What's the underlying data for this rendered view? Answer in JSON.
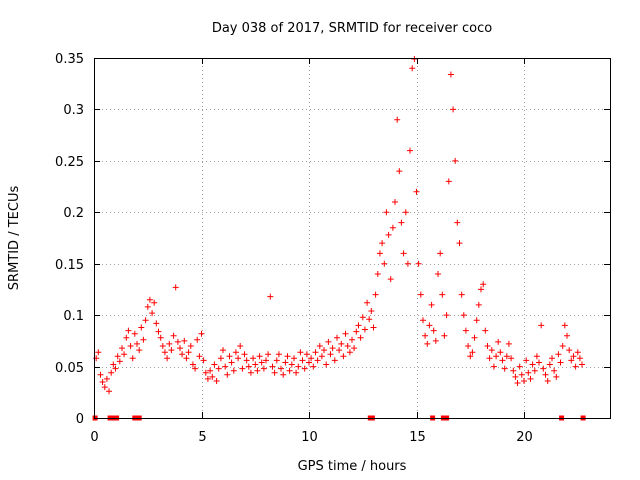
{
  "chart_data": {
    "type": "scatter",
    "title": "Day 038 of 2017, SRMTID for receiver coco",
    "xlabel": "GPS time / hours",
    "ylabel": "SRMTID / TECUs",
    "xlim": [
      0,
      24
    ],
    "ylim": [
      0,
      0.35
    ],
    "grid": true,
    "marker": "+",
    "color": "#ff0000",
    "xticks": [
      {
        "value": 0,
        "label": "0"
      },
      {
        "value": 5,
        "label": "5"
      },
      {
        "value": 10,
        "label": "10"
      },
      {
        "value": 15,
        "label": "15"
      },
      {
        "value": 20,
        "label": "20"
      }
    ],
    "yticks": [
      {
        "value": 0,
        "label": "0"
      },
      {
        "value": 0.05,
        "label": "0.05"
      },
      {
        "value": 0.1,
        "label": "0.1"
      },
      {
        "value": 0.15,
        "label": "0.15"
      },
      {
        "value": 0.2,
        "label": "0.2"
      },
      {
        "value": 0.25,
        "label": "0.25"
      },
      {
        "value": 0.3,
        "label": "0.3"
      },
      {
        "value": 0.35,
        "label": "0.35"
      }
    ],
    "data_gaps_at_zero": [
      0.05,
      0.75,
      0.85,
      1.05,
      1.9,
      2.0,
      2.1,
      12.85,
      12.95,
      15.75,
      16.25,
      16.4,
      21.75,
      22.75
    ],
    "series": [
      {
        "name": "SRMTID",
        "points": [
          [
            0.1,
            0.058
          ],
          [
            0.2,
            0.064
          ],
          [
            0.3,
            0.042
          ],
          [
            0.4,
            0.035
          ],
          [
            0.5,
            0.03
          ],
          [
            0.6,
            0.038
          ],
          [
            0.7,
            0.026
          ],
          [
            0.8,
            0.044
          ],
          [
            0.9,
            0.052
          ],
          [
            1.0,
            0.048
          ],
          [
            1.1,
            0.06
          ],
          [
            1.2,
            0.055
          ],
          [
            1.3,
            0.068
          ],
          [
            1.4,
            0.062
          ],
          [
            1.5,
            0.078
          ],
          [
            1.6,
            0.085
          ],
          [
            1.7,
            0.07
          ],
          [
            1.8,
            0.058
          ],
          [
            1.9,
            0.082
          ],
          [
            2.0,
            0.072
          ],
          [
            2.1,
            0.066
          ],
          [
            2.2,
            0.088
          ],
          [
            2.3,
            0.076
          ],
          [
            2.4,
            0.095
          ],
          [
            2.5,
            0.108
          ],
          [
            2.6,
            0.115
          ],
          [
            2.7,
            0.102
          ],
          [
            2.8,
            0.112
          ],
          [
            2.9,
            0.092
          ],
          [
            3.0,
            0.084
          ],
          [
            3.1,
            0.078
          ],
          [
            3.2,
            0.07
          ],
          [
            3.3,
            0.064
          ],
          [
            3.4,
            0.058
          ],
          [
            3.5,
            0.072
          ],
          [
            3.6,
            0.066
          ],
          [
            3.7,
            0.08
          ],
          [
            3.8,
            0.127
          ],
          [
            3.9,
            0.074
          ],
          [
            4.0,
            0.068
          ],
          [
            4.1,
            0.062
          ],
          [
            4.2,
            0.075
          ],
          [
            4.3,
            0.058
          ],
          [
            4.4,
            0.064
          ],
          [
            4.5,
            0.07
          ],
          [
            4.6,
            0.052
          ],
          [
            4.7,
            0.048
          ],
          [
            4.8,
            0.076
          ],
          [
            4.9,
            0.06
          ],
          [
            5.0,
            0.082
          ],
          [
            5.1,
            0.056
          ],
          [
            5.2,
            0.044
          ],
          [
            5.3,
            0.038
          ],
          [
            5.4,
            0.046
          ],
          [
            5.5,
            0.04
          ],
          [
            5.6,
            0.052
          ],
          [
            5.7,
            0.036
          ],
          [
            5.8,
            0.048
          ],
          [
            5.9,
            0.058
          ],
          [
            6.0,
            0.066
          ],
          [
            6.1,
            0.05
          ],
          [
            6.2,
            0.042
          ],
          [
            6.3,
            0.06
          ],
          [
            6.4,
            0.054
          ],
          [
            6.5,
            0.046
          ],
          [
            6.6,
            0.064
          ],
          [
            6.7,
            0.058
          ],
          [
            6.8,
            0.07
          ],
          [
            6.9,
            0.048
          ],
          [
            7.0,
            0.062
          ],
          [
            7.1,
            0.056
          ],
          [
            7.2,
            0.05
          ],
          [
            7.3,
            0.044
          ],
          [
            7.4,
            0.058
          ],
          [
            7.5,
            0.052
          ],
          [
            7.6,
            0.046
          ],
          [
            7.7,
            0.06
          ],
          [
            7.8,
            0.054
          ],
          [
            7.9,
            0.048
          ],
          [
            8.0,
            0.056
          ],
          [
            8.1,
            0.062
          ],
          [
            8.2,
            0.118
          ],
          [
            8.3,
            0.05
          ],
          [
            8.4,
            0.044
          ],
          [
            8.5,
            0.056
          ],
          [
            8.6,
            0.062
          ],
          [
            8.7,
            0.048
          ],
          [
            8.8,
            0.042
          ],
          [
            8.9,
            0.054
          ],
          [
            9.0,
            0.06
          ],
          [
            9.1,
            0.046
          ],
          [
            9.2,
            0.052
          ],
          [
            9.3,
            0.058
          ],
          [
            9.4,
            0.044
          ],
          [
            9.5,
            0.05
          ],
          [
            9.6,
            0.064
          ],
          [
            9.7,
            0.056
          ],
          [
            9.8,
            0.048
          ],
          [
            9.9,
            0.062
          ],
          [
            10.0,
            0.054
          ],
          [
            10.1,
            0.058
          ],
          [
            10.2,
            0.05
          ],
          [
            10.3,
            0.064
          ],
          [
            10.4,
            0.056
          ],
          [
            10.5,
            0.07
          ],
          [
            10.6,
            0.06
          ],
          [
            10.7,
            0.066
          ],
          [
            10.8,
            0.052
          ],
          [
            10.9,
            0.074
          ],
          [
            11.0,
            0.062
          ],
          [
            11.1,
            0.068
          ],
          [
            11.2,
            0.056
          ],
          [
            11.3,
            0.078
          ],
          [
            11.4,
            0.066
          ],
          [
            11.5,
            0.072
          ],
          [
            11.6,
            0.06
          ],
          [
            11.7,
            0.082
          ],
          [
            11.8,
            0.07
          ],
          [
            11.9,
            0.064
          ],
          [
            12.0,
            0.076
          ],
          [
            12.1,
            0.068
          ],
          [
            12.2,
            0.084
          ],
          [
            12.3,
            0.09
          ],
          [
            12.4,
            0.078
          ],
          [
            12.5,
            0.098
          ],
          [
            12.6,
            0.086
          ],
          [
            12.7,
            0.112
          ],
          [
            12.8,
            0.096
          ],
          [
            12.9,
            0.104
          ],
          [
            13.0,
            0.088
          ],
          [
            13.1,
            0.12
          ],
          [
            13.2,
            0.14
          ],
          [
            13.3,
            0.16
          ],
          [
            13.4,
            0.17
          ],
          [
            13.5,
            0.15
          ],
          [
            13.6,
            0.2
          ],
          [
            13.7,
            0.178
          ],
          [
            13.8,
            0.135
          ],
          [
            13.9,
            0.185
          ],
          [
            14.0,
            0.21
          ],
          [
            14.1,
            0.29
          ],
          [
            14.2,
            0.24
          ],
          [
            14.3,
            0.19
          ],
          [
            14.4,
            0.16
          ],
          [
            14.5,
            0.2
          ],
          [
            14.6,
            0.15
          ],
          [
            14.7,
            0.26
          ],
          [
            14.8,
            0.34
          ],
          [
            14.9,
            0.349
          ],
          [
            15.0,
            0.22
          ],
          [
            15.1,
            0.15
          ],
          [
            15.2,
            0.12
          ],
          [
            15.3,
            0.095
          ],
          [
            15.4,
            0.08
          ],
          [
            15.5,
            0.072
          ],
          [
            15.6,
            0.09
          ],
          [
            15.7,
            0.11
          ],
          [
            15.8,
            0.085
          ],
          [
            15.9,
            0.075
          ],
          [
            16.0,
            0.14
          ],
          [
            16.1,
            0.16
          ],
          [
            16.2,
            0.12
          ],
          [
            16.3,
            0.08
          ],
          [
            16.4,
            0.1
          ],
          [
            16.5,
            0.23
          ],
          [
            16.6,
            0.334
          ],
          [
            16.7,
            0.3
          ],
          [
            16.8,
            0.25
          ],
          [
            16.9,
            0.19
          ],
          [
            17.0,
            0.17
          ],
          [
            17.1,
            0.12
          ],
          [
            17.2,
            0.1
          ],
          [
            17.3,
            0.085
          ],
          [
            17.4,
            0.07
          ],
          [
            17.5,
            0.06
          ],
          [
            17.6,
            0.064
          ],
          [
            17.7,
            0.078
          ],
          [
            17.8,
            0.095
          ],
          [
            17.9,
            0.11
          ],
          [
            18.0,
            0.125
          ],
          [
            18.1,
            0.13
          ],
          [
            18.2,
            0.085
          ],
          [
            18.3,
            0.07
          ],
          [
            18.4,
            0.058
          ],
          [
            18.5,
            0.066
          ],
          [
            18.6,
            0.05
          ],
          [
            18.7,
            0.06
          ],
          [
            18.8,
            0.074
          ],
          [
            18.9,
            0.064
          ],
          [
            19.0,
            0.056
          ],
          [
            19.1,
            0.048
          ],
          [
            19.2,
            0.06
          ],
          [
            19.3,
            0.072
          ],
          [
            19.4,
            0.058
          ],
          [
            19.5,
            0.046
          ],
          [
            19.6,
            0.04
          ],
          [
            19.7,
            0.034
          ],
          [
            19.8,
            0.05
          ],
          [
            19.9,
            0.042
          ],
          [
            20.0,
            0.036
          ],
          [
            20.1,
            0.056
          ],
          [
            20.2,
            0.044
          ],
          [
            20.3,
            0.038
          ],
          [
            20.4,
            0.052
          ],
          [
            20.5,
            0.046
          ],
          [
            20.6,
            0.06
          ],
          [
            20.7,
            0.054
          ],
          [
            20.8,
            0.09
          ],
          [
            20.9,
            0.048
          ],
          [
            21.0,
            0.042
          ],
          [
            21.1,
            0.036
          ],
          [
            21.2,
            0.052
          ],
          [
            21.3,
            0.058
          ],
          [
            21.4,
            0.046
          ],
          [
            21.5,
            0.04
          ],
          [
            21.6,
            0.062
          ],
          [
            21.7,
            0.054
          ],
          [
            21.8,
            0.07
          ],
          [
            21.9,
            0.09
          ],
          [
            22.0,
            0.08
          ],
          [
            22.1,
            0.066
          ],
          [
            22.2,
            0.056
          ],
          [
            22.3,
            0.06
          ],
          [
            22.4,
            0.05
          ],
          [
            22.5,
            0.064
          ],
          [
            22.6,
            0.058
          ],
          [
            22.7,
            0.052
          ]
        ]
      }
    ]
  }
}
